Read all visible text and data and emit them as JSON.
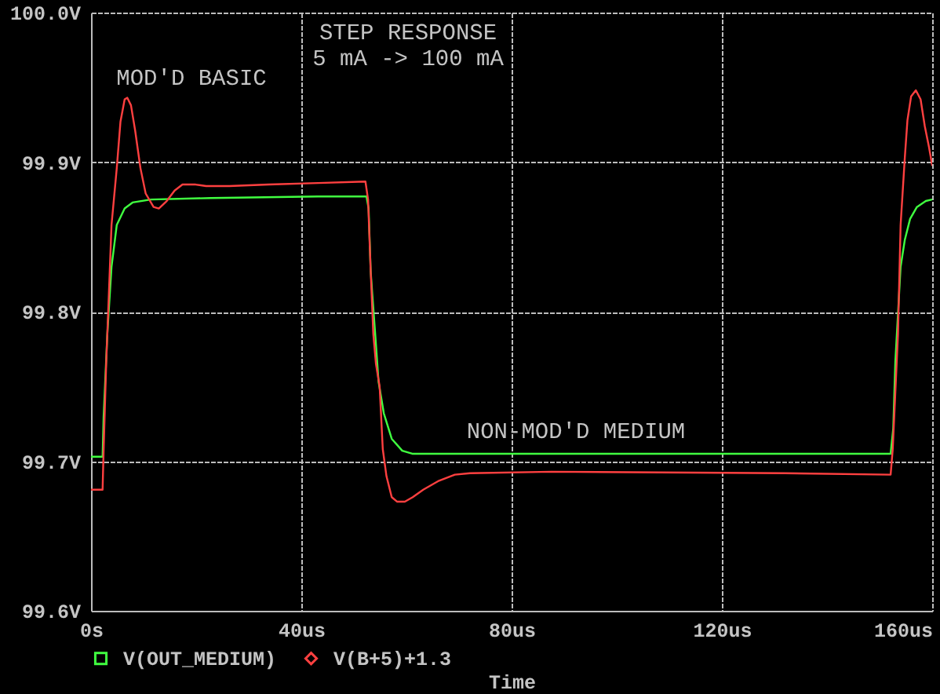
{
  "chart_data": {
    "type": "line",
    "title": "STEP RESPONSE",
    "subtitle": "5 mA -> 100 mA",
    "xlabel": "Time",
    "xlim": [
      0,
      160
    ],
    "xticks": [
      {
        "value": 0,
        "label": "0s"
      },
      {
        "value": 40,
        "label": "40us"
      },
      {
        "value": 80,
        "label": "80us"
      },
      {
        "value": 120,
        "label": "120us"
      },
      {
        "value": 160,
        "label": "160us"
      }
    ],
    "ylim": [
      99.6,
      100.0
    ],
    "yticks": [
      {
        "value": 99.6,
        "label": "99.6V"
      },
      {
        "value": 99.7,
        "label": "99.7V"
      },
      {
        "value": 99.8,
        "label": "99.8V"
      },
      {
        "value": 99.9,
        "label": "99.9V"
      },
      {
        "value": 100.0,
        "label": "100.0V"
      }
    ],
    "grid": true,
    "legend": "bottom",
    "annotations": [
      "MOD'D BASIC",
      "NON-MOD'D MEDIUM"
    ],
    "series": [
      {
        "name": "V(OUT_MEDIUM)",
        "color": "#40ff40",
        "x": [
          0,
          2.2,
          2.4,
          3.1,
          3.9,
          4.9,
          6.4,
          7.9,
          11.4,
          22.9,
          43.2,
          52.4,
          52.8,
          53.2,
          53.5,
          54.2,
          54.7,
          55.7,
          57.2,
          59.2,
          61.1,
          152.1,
          152.6,
          153.0,
          154.0,
          154.8,
          155.8,
          157.1,
          158.8,
          160
        ],
        "values": [
          99.703,
          99.703,
          99.73,
          99.785,
          99.83,
          99.858,
          99.869,
          99.873,
          99.875,
          99.876,
          99.877,
          99.877,
          99.869,
          99.827,
          99.812,
          99.778,
          99.753,
          99.732,
          99.715,
          99.707,
          99.705,
          99.705,
          99.722,
          99.767,
          99.83,
          99.848,
          99.862,
          99.87,
          99.874,
          99.875
        ]
      },
      {
        "name": "V(B+5)+1.3",
        "color": "#ff4040",
        "x": [
          0,
          2.2,
          2.4,
          2.9,
          3.4,
          3.9,
          4.9,
          5.6,
          6.4,
          6.9,
          7.6,
          8.4,
          9.4,
          10.4,
          11.9,
          12.9,
          14.4,
          15.9,
          17.4,
          19.9,
          21.9,
          26.3,
          33.8,
          43.2,
          52.2,
          52.7,
          53.2,
          53.7,
          54.2,
          54.9,
          55.5,
          56.2,
          57.2,
          58.2,
          59.7,
          61.2,
          63.2,
          66.2,
          69.2,
          72.1,
          87.6,
          131.9,
          152.1,
          152.5,
          153.5,
          154.0,
          154.8,
          155.3,
          156.0,
          156.9,
          157.8,
          158.6,
          159.4,
          160
        ],
        "values": [
          99.681,
          99.681,
          99.708,
          99.767,
          99.812,
          99.858,
          99.896,
          99.927,
          99.942,
          99.943,
          99.938,
          99.921,
          99.896,
          99.879,
          99.87,
          99.869,
          99.874,
          99.881,
          99.885,
          99.885,
          99.884,
          99.884,
          99.885,
          99.886,
          99.887,
          99.875,
          99.827,
          99.785,
          99.765,
          99.75,
          99.708,
          99.69,
          99.676,
          99.673,
          99.673,
          99.676,
          99.681,
          99.687,
          99.691,
          99.692,
          99.693,
          99.692,
          99.691,
          99.708,
          99.785,
          99.858,
          99.903,
          99.928,
          99.944,
          99.948,
          99.942,
          99.924,
          99.91,
          99.898
        ]
      }
    ]
  }
}
